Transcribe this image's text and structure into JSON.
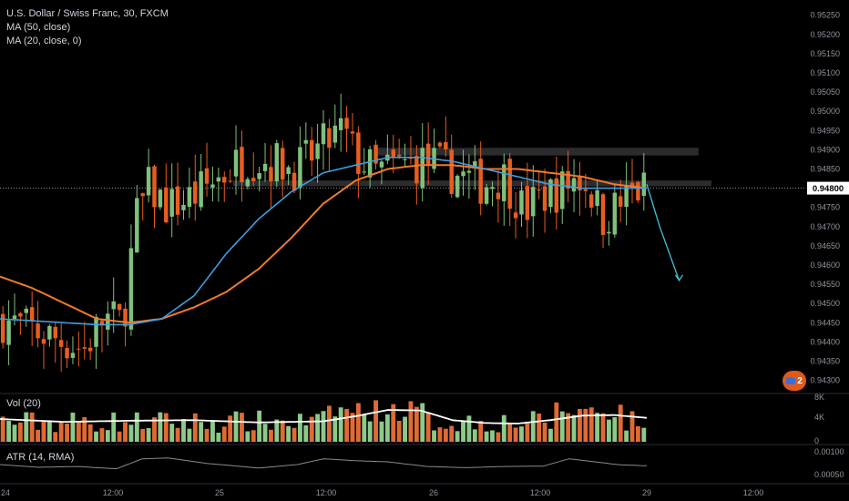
{
  "header": {
    "symbol": "U.S. Dollar / Swiss Franc, 30, FXCM",
    "ma1": "MA (50, close)",
    "ma2": "MA (20, close, 0)"
  },
  "panes": {
    "vol_label": "Vol (20)",
    "atr_label": "ATR (14, RMA)"
  },
  "badge": {
    "count": "2"
  },
  "price_axis": {
    "ticks": [
      "0.95250",
      "0.95200",
      "0.95150",
      "0.95100",
      "0.95050",
      "0.95000",
      "0.94950",
      "0.94900",
      "0.94850",
      "0.94800",
      "0.94750",
      "0.94700",
      "0.94650",
      "0.94600",
      "0.94550",
      "0.94500",
      "0.94450",
      "0.94400",
      "0.94350",
      "0.94300"
    ],
    "last_price": "0.94800"
  },
  "vol_axis": {
    "ticks": [
      "8K",
      "4K",
      "0"
    ]
  },
  "atr_axis": {
    "ticks": [
      "0.00100",
      "0.00050"
    ]
  },
  "time_axis": {
    "ticks": [
      "24",
      "12:00",
      "25",
      "12:00",
      "26",
      "12:00",
      "29",
      "12:00"
    ]
  },
  "colors": {
    "up": "#7fc07c",
    "down": "#e85d20",
    "ma50": "#f07a2c",
    "ma20": "#3f9fe0",
    "vol_ma": "#ffffff",
    "atr": "#8a8a8a",
    "projection": "#3ec6d6"
  },
  "chart_data": {
    "type": "candlestick",
    "title": "U.S. Dollar / Swiss Franc, 30, FXCM",
    "ylim": [
      0.9428,
      0.9528
    ],
    "seed": 7,
    "candle_count": 111,
    "ma20_path": [
      [
        0,
        0.9446
      ],
      [
        0.05,
        0.94455
      ],
      [
        0.1,
        0.9445
      ],
      [
        0.15,
        0.94445
      ],
      [
        0.2,
        0.94445
      ],
      [
        0.25,
        0.9446
      ],
      [
        0.3,
        0.9452
      ],
      [
        0.35,
        0.9463
      ],
      [
        0.4,
        0.9472
      ],
      [
        0.45,
        0.9479
      ],
      [
        0.5,
        0.9484
      ],
      [
        0.55,
        0.9486
      ],
      [
        0.6,
        0.9488
      ],
      [
        0.65,
        0.9488
      ],
      [
        0.7,
        0.9487
      ],
      [
        0.75,
        0.9485
      ],
      [
        0.8,
        0.9483
      ],
      [
        0.85,
        0.9481
      ],
      [
        0.9,
        0.948
      ],
      [
        0.95,
        0.948
      ],
      [
        1,
        0.948
      ]
    ],
    "ma50_path": [
      [
        0,
        0.9457
      ],
      [
        0.05,
        0.9454
      ],
      [
        0.1,
        0.945
      ],
      [
        0.15,
        0.9446
      ],
      [
        0.2,
        0.9445
      ],
      [
        0.25,
        0.9446
      ],
      [
        0.3,
        0.9449
      ],
      [
        0.35,
        0.9453
      ],
      [
        0.4,
        0.9459
      ],
      [
        0.45,
        0.9467
      ],
      [
        0.5,
        0.9476
      ],
      [
        0.55,
        0.9482
      ],
      [
        0.6,
        0.9485
      ],
      [
        0.65,
        0.9486
      ],
      [
        0.7,
        0.9486
      ],
      [
        0.75,
        0.9485
      ],
      [
        0.8,
        0.9485
      ],
      [
        0.85,
        0.9484
      ],
      [
        0.9,
        0.9483
      ],
      [
        0.95,
        0.9481
      ],
      [
        1,
        0.948
      ]
    ],
    "price_path": [
      [
        0,
        0.9446
      ],
      [
        0.05,
        0.9443
      ],
      [
        0.1,
        0.944
      ],
      [
        0.13,
        0.9438
      ],
      [
        0.16,
        0.9446
      ],
      [
        0.19,
        0.9445
      ],
      [
        0.21,
        0.9472
      ],
      [
        0.23,
        0.948
      ],
      [
        0.26,
        0.9475
      ],
      [
        0.3,
        0.9478
      ],
      [
        0.34,
        0.9483
      ],
      [
        0.38,
        0.9488
      ],
      [
        0.42,
        0.9487
      ],
      [
        0.46,
        0.9485
      ],
      [
        0.5,
        0.9491
      ],
      [
        0.53,
        0.9495
      ],
      [
        0.55,
        0.9488
      ],
      [
        0.58,
        0.9484
      ],
      [
        0.62,
        0.9486
      ],
      [
        0.66,
        0.9487
      ],
      [
        0.7,
        0.9484
      ],
      [
        0.74,
        0.9481
      ],
      [
        0.78,
        0.9483
      ],
      [
        0.81,
        0.9474
      ],
      [
        0.84,
        0.9478
      ],
      [
        0.87,
        0.948
      ],
      [
        0.89,
        0.9483
      ],
      [
        0.91,
        0.9481
      ],
      [
        0.93,
        0.9472
      ],
      [
        0.96,
        0.9476
      ],
      [
        0.98,
        0.9479
      ],
      [
        1,
        0.948
      ]
    ],
    "zones": [
      {
        "from": 0.94885,
        "to": 0.94905,
        "x_start": 0.58,
        "x_end": 1.08
      },
      {
        "from": 0.94805,
        "to": 0.9482,
        "x_start": 0.36,
        "x_end": 1.1
      }
    ],
    "projection": [
      [
        1.0,
        0.9481
      ],
      [
        1.02,
        0.947
      ],
      [
        1.05,
        0.9456
      ]
    ],
    "volume_ma": [
      [
        0,
        4.0
      ],
      [
        0.1,
        3.5
      ],
      [
        0.2,
        3.7
      ],
      [
        0.3,
        3.8
      ],
      [
        0.4,
        3.4
      ],
      [
        0.5,
        3.6
      ],
      [
        0.55,
        4.5
      ],
      [
        0.6,
        5.6
      ],
      [
        0.65,
        5.5
      ],
      [
        0.7,
        3.8
      ],
      [
        0.75,
        3.3
      ],
      [
        0.8,
        3.2
      ],
      [
        0.85,
        3.8
      ],
      [
        0.9,
        4.6
      ],
      [
        0.95,
        4.7
      ],
      [
        1,
        4.2
      ]
    ],
    "volume_ylim": [
      0,
      8
    ],
    "atr_ylim": [
      0.0003,
      0.0012
    ],
    "atr_path": [
      [
        0,
        0.00075
      ],
      [
        0.06,
        0.00068
      ],
      [
        0.12,
        0.0007
      ],
      [
        0.18,
        0.00064
      ],
      [
        0.22,
        0.0009
      ],
      [
        0.26,
        0.00092
      ],
      [
        0.32,
        0.00078
      ],
      [
        0.4,
        0.00066
      ],
      [
        0.46,
        0.00075
      ],
      [
        0.5,
        0.0009
      ],
      [
        0.55,
        0.00085
      ],
      [
        0.6,
        0.00082
      ],
      [
        0.66,
        0.0007
      ],
      [
        0.72,
        0.00067
      ],
      [
        0.78,
        0.0007
      ],
      [
        0.84,
        0.00071
      ],
      [
        0.88,
        0.0009
      ],
      [
        0.92,
        0.00082
      ],
      [
        0.96,
        0.00074
      ],
      [
        1,
        0.00072
      ]
    ]
  }
}
